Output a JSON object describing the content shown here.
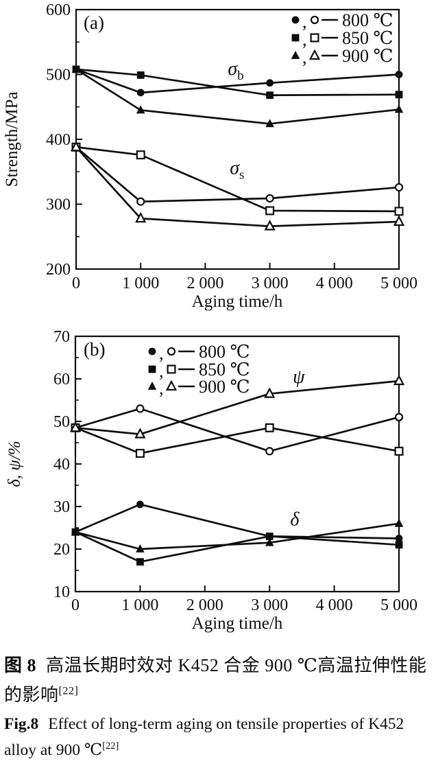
{
  "figure": {
    "caption_zh": {
      "label": "图 8",
      "text": "高温长期时效对 K452 合金 900 ℃高温拉伸性能的影响",
      "ref": "[22]"
    },
    "caption_en": {
      "label": "Fig.8",
      "text": "Effect of long-term aging on tensile properties of K452 alloy at 900 ℃",
      "ref": "[22]"
    }
  },
  "colors": {
    "ink": "#0d0d0d",
    "background": "#ffffff"
  },
  "chart_data": [
    {
      "id": "chart-a",
      "type": "line",
      "panel_label": "(a)",
      "xlabel": "Aging time/h",
      "ylabel": "Strength/MPa",
      "ylabel_italic": false,
      "xlim": [
        0,
        5000
      ],
      "ylim": [
        200,
        600
      ],
      "xticks": [
        0,
        1000,
        2000,
        3000,
        4000,
        5000
      ],
      "xtick_labels": [
        "0",
        "1 000",
        "2 000",
        "3 000",
        "4 000",
        "5 000"
      ],
      "yticks": [
        200,
        300,
        400,
        500,
        600
      ],
      "grid": false,
      "legend_position": "top-right-inside",
      "legend": [
        {
          "symbols": [
            "filled-circle",
            "open-circle"
          ],
          "label": "800 ℃"
        },
        {
          "symbols": [
            "filled-square",
            "open-square"
          ],
          "label": "850 ℃"
        },
        {
          "symbols": [
            "filled-triangle",
            "open-triangle"
          ],
          "label": "900 ℃"
        }
      ],
      "x": [
        0,
        1000,
        3000,
        5000
      ],
      "series": [
        {
          "name": "σb 800 ℃",
          "marker": "filled-circle",
          "values": [
            508,
            472,
            487,
            500
          ]
        },
        {
          "name": "σb 850 ℃",
          "marker": "filled-square",
          "values": [
            508,
            499,
            468,
            469
          ]
        },
        {
          "name": "σb 900 ℃",
          "marker": "filled-triangle",
          "values": [
            508,
            445,
            424,
            446
          ]
        },
        {
          "name": "σs 800 ℃",
          "marker": "open-circle",
          "values": [
            388,
            304,
            309,
            326
          ]
        },
        {
          "name": "σs 850 ℃",
          "marker": "open-square",
          "values": [
            388,
            376,
            290,
            289
          ]
        },
        {
          "name": "σs 900 ℃",
          "marker": "open-triangle",
          "values": [
            388,
            278,
            266,
            273
          ]
        }
      ],
      "annotations": [
        {
          "text": "σ",
          "sub": "b",
          "x": 2350,
          "y": 509
        },
        {
          "text": "σ",
          "sub": "s",
          "x": 2380,
          "y": 356
        }
      ]
    },
    {
      "id": "chart-b",
      "type": "line",
      "panel_label": "(b)",
      "xlabel": "Aging time/h",
      "ylabel": "δ, ψ/%",
      "ylabel_italic": true,
      "xlim": [
        0,
        5000
      ],
      "ylim": [
        10,
        70
      ],
      "xticks": [
        0,
        1000,
        2000,
        3000,
        4000,
        5000
      ],
      "xtick_labels": [
        "0",
        "1 000",
        "2 000",
        "3 000",
        "4 000",
        "5 000"
      ],
      "yticks": [
        10,
        20,
        30,
        40,
        50,
        60,
        70
      ],
      "grid": false,
      "legend_position": "top-left-inside",
      "legend": [
        {
          "symbols": [
            "filled-circle",
            "open-circle"
          ],
          "label": "800 ℃"
        },
        {
          "symbols": [
            "filled-square",
            "open-square"
          ],
          "label": "850 ℃"
        },
        {
          "symbols": [
            "filled-triangle",
            "open-triangle"
          ],
          "label": "900 ℃"
        }
      ],
      "x": [
        0,
        1000,
        3000,
        5000
      ],
      "series": [
        {
          "name": "ψ 800 ℃",
          "marker": "open-circle",
          "values": [
            48.5,
            53,
            43,
            51
          ]
        },
        {
          "name": "ψ 850 ℃",
          "marker": "open-square",
          "values": [
            48.5,
            42.5,
            48.5,
            43
          ]
        },
        {
          "name": "ψ 900 ℃",
          "marker": "open-triangle",
          "values": [
            48.5,
            47,
            56.5,
            59.5
          ]
        },
        {
          "name": "δ 800 ℃",
          "marker": "filled-circle",
          "values": [
            24,
            30.5,
            23,
            22.5
          ]
        },
        {
          "name": "δ 850 ℃",
          "marker": "filled-square",
          "values": [
            24,
            17,
            23,
            21
          ]
        },
        {
          "name": "δ 900 ℃",
          "marker": "filled-triangle",
          "values": [
            24,
            20,
            21.5,
            26
          ]
        }
      ],
      "annotations": [
        {
          "text": "ψ",
          "x": 3360,
          "y": 60.5
        },
        {
          "text": "δ",
          "x": 3320,
          "y": 27
        }
      ]
    }
  ]
}
